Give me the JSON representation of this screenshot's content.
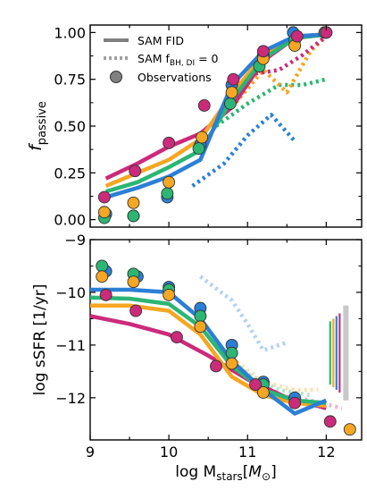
{
  "chart_data": [
    {
      "type": "line",
      "panel": "top",
      "ylabel_main": "f",
      "ylabel_sub": "passive",
      "xlim": [
        9,
        12.45
      ],
      "ylim": [
        -0.04,
        1.04
      ],
      "yticks": [
        0.0,
        0.25,
        0.5,
        0.75,
        1.0
      ],
      "ytick_labels": [
        "0.00",
        "0.25",
        "0.50",
        "0.75",
        "1.00"
      ],
      "legend": {
        "placement": "top-left",
        "entries": [
          {
            "label_main": "SAM FID",
            "label_sub": "",
            "style": "solid"
          },
          {
            "label_main": "SAM f",
            "label_sub": "BH, DI",
            "label_tail": " = 0",
            "style": "dotted"
          },
          {
            "label_main": "Observations",
            "label_sub": "",
            "style": "marker"
          }
        ]
      },
      "series": [
        {
          "color": "#cc2a7a",
          "style": "solid",
          "x": [
            9.2,
            9.6,
            10.0,
            10.4,
            10.8,
            11.2,
            11.6,
            12.0
          ],
          "y": [
            0.22,
            0.3,
            0.39,
            0.46,
            0.6,
            0.85,
            0.97,
            0.99
          ]
        },
        {
          "color": "#f5a623",
          "style": "solid",
          "x": [
            9.2,
            9.6,
            10.0,
            10.4,
            10.8,
            11.2,
            11.6,
            12.0
          ],
          "y": [
            0.18,
            0.25,
            0.32,
            0.43,
            0.67,
            0.88,
            0.98,
            0.99
          ]
        },
        {
          "color": "#2bb673",
          "style": "solid",
          "x": [
            9.2,
            9.6,
            10.0,
            10.4,
            10.8,
            11.2,
            11.6,
            12.0
          ],
          "y": [
            0.15,
            0.2,
            0.28,
            0.37,
            0.64,
            0.86,
            0.97,
            0.99
          ]
        },
        {
          "color": "#2b7fd6",
          "style": "solid",
          "x": [
            9.2,
            9.6,
            10.0,
            10.4,
            10.8,
            11.2,
            11.6,
            12.0
          ],
          "y": [
            0.12,
            0.17,
            0.23,
            0.32,
            0.72,
            0.9,
            0.98,
            0.99
          ]
        },
        {
          "color": "#2b7fd6",
          "style": "dotted",
          "x": [
            10.3,
            10.7,
            11.0,
            11.3,
            11.6
          ],
          "y": [
            0.18,
            0.3,
            0.45,
            0.56,
            0.42
          ]
        },
        {
          "color": "#2bb673",
          "style": "dotted",
          "x": [
            10.6,
            11.0,
            11.4,
            11.7,
            12.0
          ],
          "y": [
            0.5,
            0.62,
            0.72,
            0.72,
            0.75
          ]
        },
        {
          "color": "#f5a623",
          "style": "dotted",
          "x": [
            10.8,
            11.2,
            11.5,
            11.8,
            12.0
          ],
          "y": [
            0.6,
            0.8,
            0.68,
            0.9,
            0.98
          ]
        },
        {
          "color": "#cc2a7a",
          "style": "dotted",
          "x": [
            11.1,
            11.4,
            11.7,
            12.0
          ],
          "y": [
            0.78,
            0.8,
            0.88,
            0.98
          ]
        }
      ],
      "markers": [
        {
          "color": "#2b7fd6",
          "x": [
            9.2,
            9.55,
            9.98,
            10.4,
            10.8,
            11.2,
            11.58,
            12.0
          ],
          "y": [
            0.03,
            0.02,
            0.12,
            0.4,
            0.72,
            0.88,
            1.0,
            1.0
          ]
        },
        {
          "color": "#2bb673",
          "x": [
            9.18,
            9.55,
            9.98,
            10.38,
            10.78,
            11.15,
            11.6,
            11.98
          ],
          "y": [
            0.01,
            0.02,
            0.14,
            0.38,
            0.62,
            0.82,
            0.96,
            1.0
          ]
        },
        {
          "color": "#f5a623",
          "x": [
            9.18,
            9.55,
            10.0,
            10.42,
            10.8,
            11.2,
            11.6
          ],
          "y": [
            0.04,
            0.09,
            0.2,
            0.44,
            0.68,
            0.86,
            0.93
          ]
        },
        {
          "color": "#cc2a7a",
          "x": [
            9.18,
            9.57,
            10.0,
            10.45,
            10.82,
            11.2,
            11.63,
            12.0
          ],
          "y": [
            0.12,
            0.26,
            0.41,
            0.61,
            0.75,
            0.9,
            0.98,
            1.0
          ]
        }
      ]
    },
    {
      "type": "line",
      "panel": "bottom",
      "xlabel_main": "log M",
      "xlabel_sub": "stars",
      "xlabel_unit_main": "M",
      "xlabel_unit_sub": "⊙",
      "ylabel": "log sSFR [1/yr]",
      "xlim": [
        9,
        12.45
      ],
      "ylim": [
        -12.8,
        -9.0
      ],
      "xticks": [
        9,
        10,
        11,
        12
      ],
      "xtick_labels": [
        "9",
        "10",
        "11",
        "12"
      ],
      "yticks": [
        -9,
        -10,
        -11,
        -12
      ],
      "ytick_labels": [
        "−9",
        "−10",
        "−11",
        "−12"
      ],
      "series": [
        {
          "color": "#cc2a7a",
          "style": "solid",
          "x": [
            9.0,
            9.5,
            10.0,
            10.5,
            11.0,
            11.5,
            12.0
          ],
          "y": [
            -10.45,
            -10.6,
            -10.8,
            -11.2,
            -11.65,
            -12.0,
            -12.2
          ]
        },
        {
          "color": "#f5a623",
          "style": "solid",
          "x": [
            9.0,
            9.5,
            10.0,
            10.4,
            10.8,
            11.2,
            11.6,
            12.0
          ],
          "y": [
            -10.25,
            -10.25,
            -10.35,
            -10.8,
            -11.6,
            -11.95,
            -12.1,
            -12.15
          ]
        },
        {
          "color": "#2bb673",
          "style": "solid",
          "x": [
            9.0,
            9.5,
            10.0,
            10.4,
            10.8,
            11.2,
            11.6,
            12.0
          ],
          "y": [
            -10.1,
            -10.12,
            -10.22,
            -10.65,
            -11.4,
            -11.85,
            -12.05,
            -12.1
          ]
        },
        {
          "color": "#2b7fd6",
          "style": "solid",
          "x": [
            9.0,
            9.5,
            10.0,
            10.4,
            10.8,
            11.2,
            11.6,
            12.0
          ],
          "y": [
            -9.95,
            -9.95,
            -10.0,
            -10.5,
            -11.3,
            -11.85,
            -12.3,
            -12.05
          ]
        },
        {
          "color": "#2b7fd6",
          "style": "dotted-faint",
          "x": [
            10.4,
            10.8,
            11.0,
            11.2,
            11.5
          ],
          "y": [
            -9.7,
            -10.15,
            -10.6,
            -11.1,
            -10.95
          ]
        },
        {
          "color": "#2bb673",
          "style": "dotted-faint",
          "x": [
            10.6,
            11.0,
            11.4,
            11.8
          ],
          "y": [
            -11.0,
            -11.55,
            -11.85,
            -11.95
          ]
        },
        {
          "color": "#f5a623",
          "style": "dotted-faint",
          "x": [
            10.8,
            11.2,
            11.6,
            11.9
          ],
          "y": [
            -11.25,
            -11.7,
            -11.85,
            -11.85
          ]
        },
        {
          "color": "#cc2a7a",
          "style": "dotted-faint",
          "x": [
            11.0,
            11.4,
            11.8,
            12.2
          ],
          "y": [
            -11.6,
            -11.95,
            -12.05,
            -12.2
          ]
        }
      ],
      "markers": [
        {
          "color": "#2b7fd6",
          "x": [
            9.2,
            9.6,
            10.0,
            10.4,
            10.8,
            11.2,
            11.6
          ],
          "y": [
            -9.6,
            -9.7,
            -9.9,
            -10.3,
            -11.0,
            -11.7,
            -12.0
          ]
        },
        {
          "color": "#2bb673",
          "x": [
            9.15,
            9.55,
            10.0,
            10.4,
            10.8,
            11.2
          ],
          "y": [
            -9.5,
            -9.65,
            -9.95,
            -10.45,
            -11.15,
            -11.75
          ]
        },
        {
          "color": "#f5a623",
          "x": [
            9.15,
            9.55,
            10.0,
            10.4,
            10.8,
            11.2,
            12.3
          ],
          "y": [
            -9.7,
            -9.8,
            -10.05,
            -10.65,
            -11.35,
            -11.9,
            -12.6
          ]
        },
        {
          "color": "#cc2a7a",
          "x": [
            9.2,
            9.58,
            10.1,
            10.6,
            11.1,
            11.6,
            12.05
          ],
          "y": [
            -10.05,
            -10.35,
            -10.85,
            -11.4,
            -11.75,
            -12.1,
            -12.45
          ]
        }
      ],
      "error_bars": [
        {
          "color": "#2bb673",
          "x": 12.05,
          "y_low": -11.75,
          "y_high": -10.55
        },
        {
          "color": "#f5a623",
          "x": 12.09,
          "y_low": -11.8,
          "y_high": -10.5
        },
        {
          "color": "#2b7fd6",
          "x": 12.13,
          "y_low": -11.85,
          "y_high": -10.45
        },
        {
          "color": "#cc2a7a",
          "x": 12.17,
          "y_low": -11.9,
          "y_high": -10.4
        },
        {
          "color": "#bbbbbb",
          "x": 12.25,
          "y_low": -12.05,
          "y_high": -10.25
        }
      ]
    }
  ]
}
